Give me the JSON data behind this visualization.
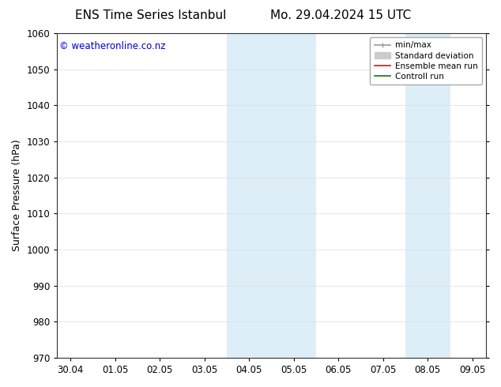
{
  "title_left": "ENS Time Series Istanbul",
  "title_right": "Mo. 29.04.2024 15 UTC",
  "ylabel": "Surface Pressure (hPa)",
  "ylim": [
    970,
    1060
  ],
  "yticks": [
    970,
    980,
    990,
    1000,
    1010,
    1020,
    1030,
    1040,
    1050,
    1060
  ],
  "xtick_labels": [
    "30.04",
    "01.05",
    "02.05",
    "03.05",
    "04.05",
    "05.05",
    "06.05",
    "07.05",
    "08.05",
    "09.05"
  ],
  "xtick_positions": [
    0,
    1,
    2,
    3,
    4,
    5,
    6,
    7,
    8,
    9
  ],
  "xlim": [
    -0.3,
    9.3
  ],
  "shaded_regions": [
    {
      "xmin": 3.5,
      "xmax": 5.5,
      "color": "#ddeef8"
    },
    {
      "xmin": 7.5,
      "xmax": 8.5,
      "color": "#ddeef8"
    }
  ],
  "watermark": "© weatheronline.co.nz",
  "watermark_color": "#0000cc",
  "legend_entries": [
    {
      "label": "min/max",
      "color": "#999999",
      "lw": 1.2
    },
    {
      "label": "Standard deviation",
      "color": "#cccccc",
      "lw": 6
    },
    {
      "label": "Ensemble mean run",
      "color": "red",
      "lw": 1.2
    },
    {
      "label": "Controll run",
      "color": "green",
      "lw": 1.2
    }
  ],
  "bg_color": "#ffffff",
  "plot_bg_color": "#ffffff",
  "title_fontsize": 11,
  "tick_fontsize": 8.5,
  "ylabel_fontsize": 9,
  "watermark_fontsize": 8.5,
  "legend_fontsize": 7.5
}
